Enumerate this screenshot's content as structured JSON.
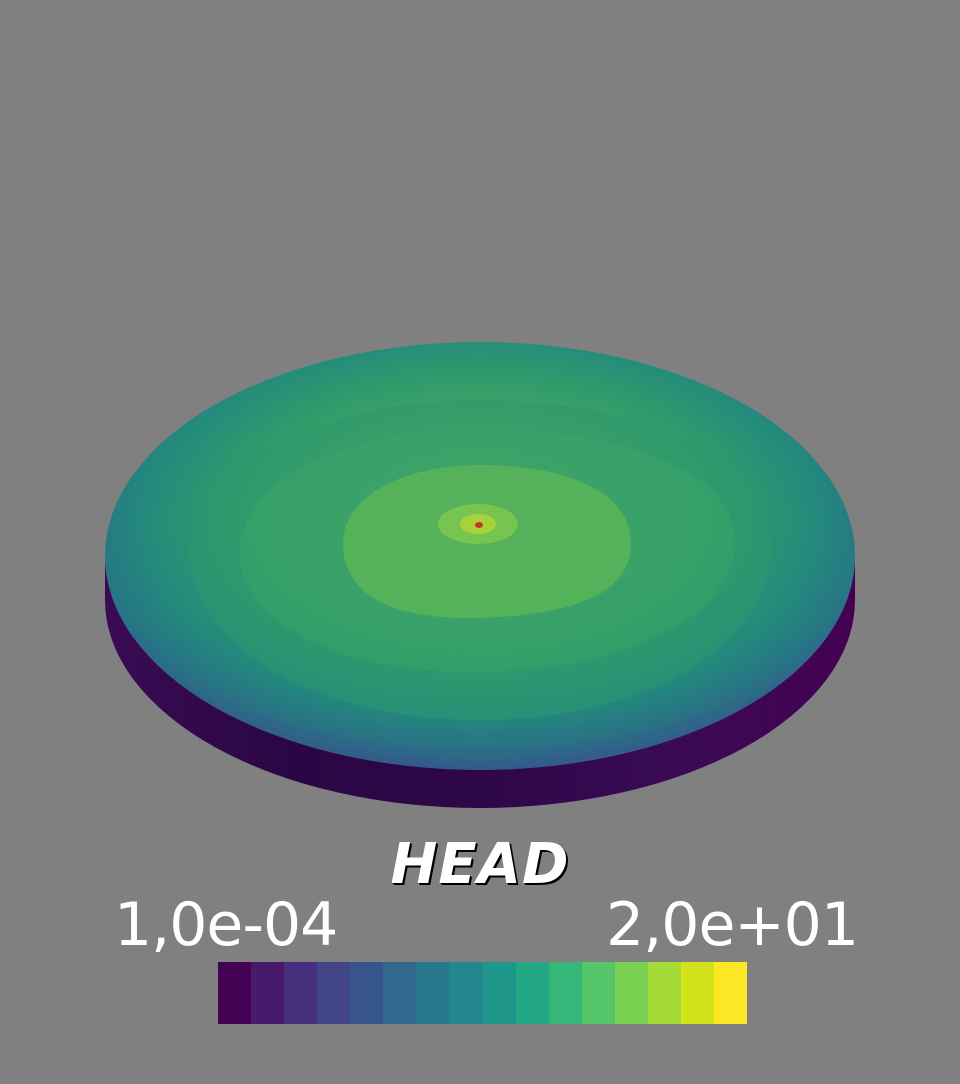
{
  "scalar_bar": {
    "title": "HEAD",
    "range_min_label": "1,0e-04",
    "range_max_label": "2,0e+01",
    "colors": [
      "#440154",
      "#481a6c",
      "#472f7d",
      "#414487",
      "#39568c",
      "#31688e",
      "#2a788e",
      "#23888e",
      "#1f988b",
      "#22a884",
      "#35b779",
      "#54c568",
      "#7ad151",
      "#a5db36",
      "#d2e21b",
      "#fde725"
    ]
  },
  "scene": {
    "background": "#808080",
    "object": "disc-mesh"
  }
}
